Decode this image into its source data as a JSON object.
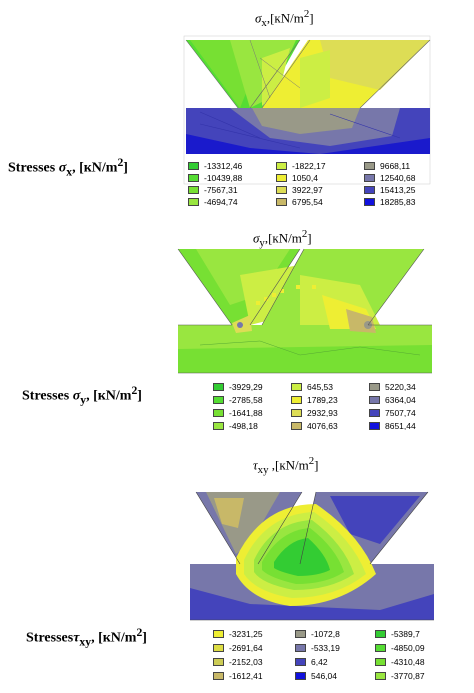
{
  "panels": [
    {
      "title_sym": "σ",
      "title_sub": "x",
      "title_unit": ",[кN/m",
      "title_sup": "2",
      "title_close": "]",
      "label_prefix": "Stresses ",
      "label_sym": "σ",
      "label_sub": "x",
      "label_unit": ", [кN/m",
      "label_sup": "2",
      "label_close": "]",
      "legend": [
        {
          "value": "-13312,46",
          "color": "#33cc33"
        },
        {
          "value": "-10439,88",
          "color": "#55dd33"
        },
        {
          "value": "-7567,31",
          "color": "#77e033"
        },
        {
          "value": "-4694,74",
          "color": "#99e640"
        },
        {
          "value": "-1822,17",
          "color": "#ccee44"
        },
        {
          "value": "1050,4",
          "color": "#eeee33"
        },
        {
          "value": "3922,97",
          "color": "#dddd55"
        },
        {
          "value": "6795,54",
          "color": "#c8b868"
        },
        {
          "value": "9668,11",
          "color": "#999988"
        },
        {
          "value": "12540,68",
          "color": "#7777aa"
        },
        {
          "value": "15413,25",
          "color": "#4444bb"
        },
        {
          "value": "18285,83",
          "color": "#1111dd"
        }
      ]
    },
    {
      "title_sym": "σ",
      "title_sub": "y",
      "title_unit": ",[кN/m",
      "title_sup": "2",
      "title_close": "]",
      "label_prefix": "Stresses ",
      "label_sym": "σ",
      "label_sub": "y",
      "label_unit": ", [кN/m",
      "label_sup": "2",
      "label_close": "]",
      "legend": [
        {
          "value": "-3929,29",
          "color": "#33cc33"
        },
        {
          "value": "-2785,58",
          "color": "#55dd33"
        },
        {
          "value": "-1641,88",
          "color": "#77e033"
        },
        {
          "value": "-498,18",
          "color": "#99e640"
        },
        {
          "value": "645,53",
          "color": "#ccee44"
        },
        {
          "value": "1789,23",
          "color": "#eeee33"
        },
        {
          "value": "2932,93",
          "color": "#dddd55"
        },
        {
          "value": "4076,63",
          "color": "#c8b868"
        },
        {
          "value": "5220,34",
          "color": "#999988"
        },
        {
          "value": "6364,04",
          "color": "#7777aa"
        },
        {
          "value": "7507,74",
          "color": "#4444bb"
        },
        {
          "value": "8651,44",
          "color": "#1111dd"
        }
      ]
    },
    {
      "title_sym": "τ",
      "title_sub": "xy",
      "title_unit": " ,[кN/m",
      "title_sup": "2",
      "title_close": "]",
      "label_prefix": "Stresses",
      "label_sym": "τ",
      "label_sub": "xy",
      "label_unit": ", [кN/m",
      "label_sup": "2",
      "label_close": "]",
      "legend": [
        {
          "value": "-3231,25",
          "color": "#eeee33"
        },
        {
          "value": "-2691,64",
          "color": "#dddd44"
        },
        {
          "value": "-2152,03",
          "color": "#cccc55"
        },
        {
          "value": "-1612,41",
          "color": "#c8b868"
        },
        {
          "value": "-1072,8",
          "color": "#999988"
        },
        {
          "value": "-533,19",
          "color": "#7777aa"
        },
        {
          "value": "6,42",
          "color": "#4444bb"
        },
        {
          "value": "546,04",
          "color": "#1111dd"
        },
        {
          "value": "-5389,7",
          "color": "#33cc33"
        },
        {
          "value": "-4850,09",
          "color": "#55dd33"
        },
        {
          "value": "-4310,48",
          "color": "#77e033"
        },
        {
          "value": "-3770,87",
          "color": "#99e640"
        }
      ]
    }
  ]
}
